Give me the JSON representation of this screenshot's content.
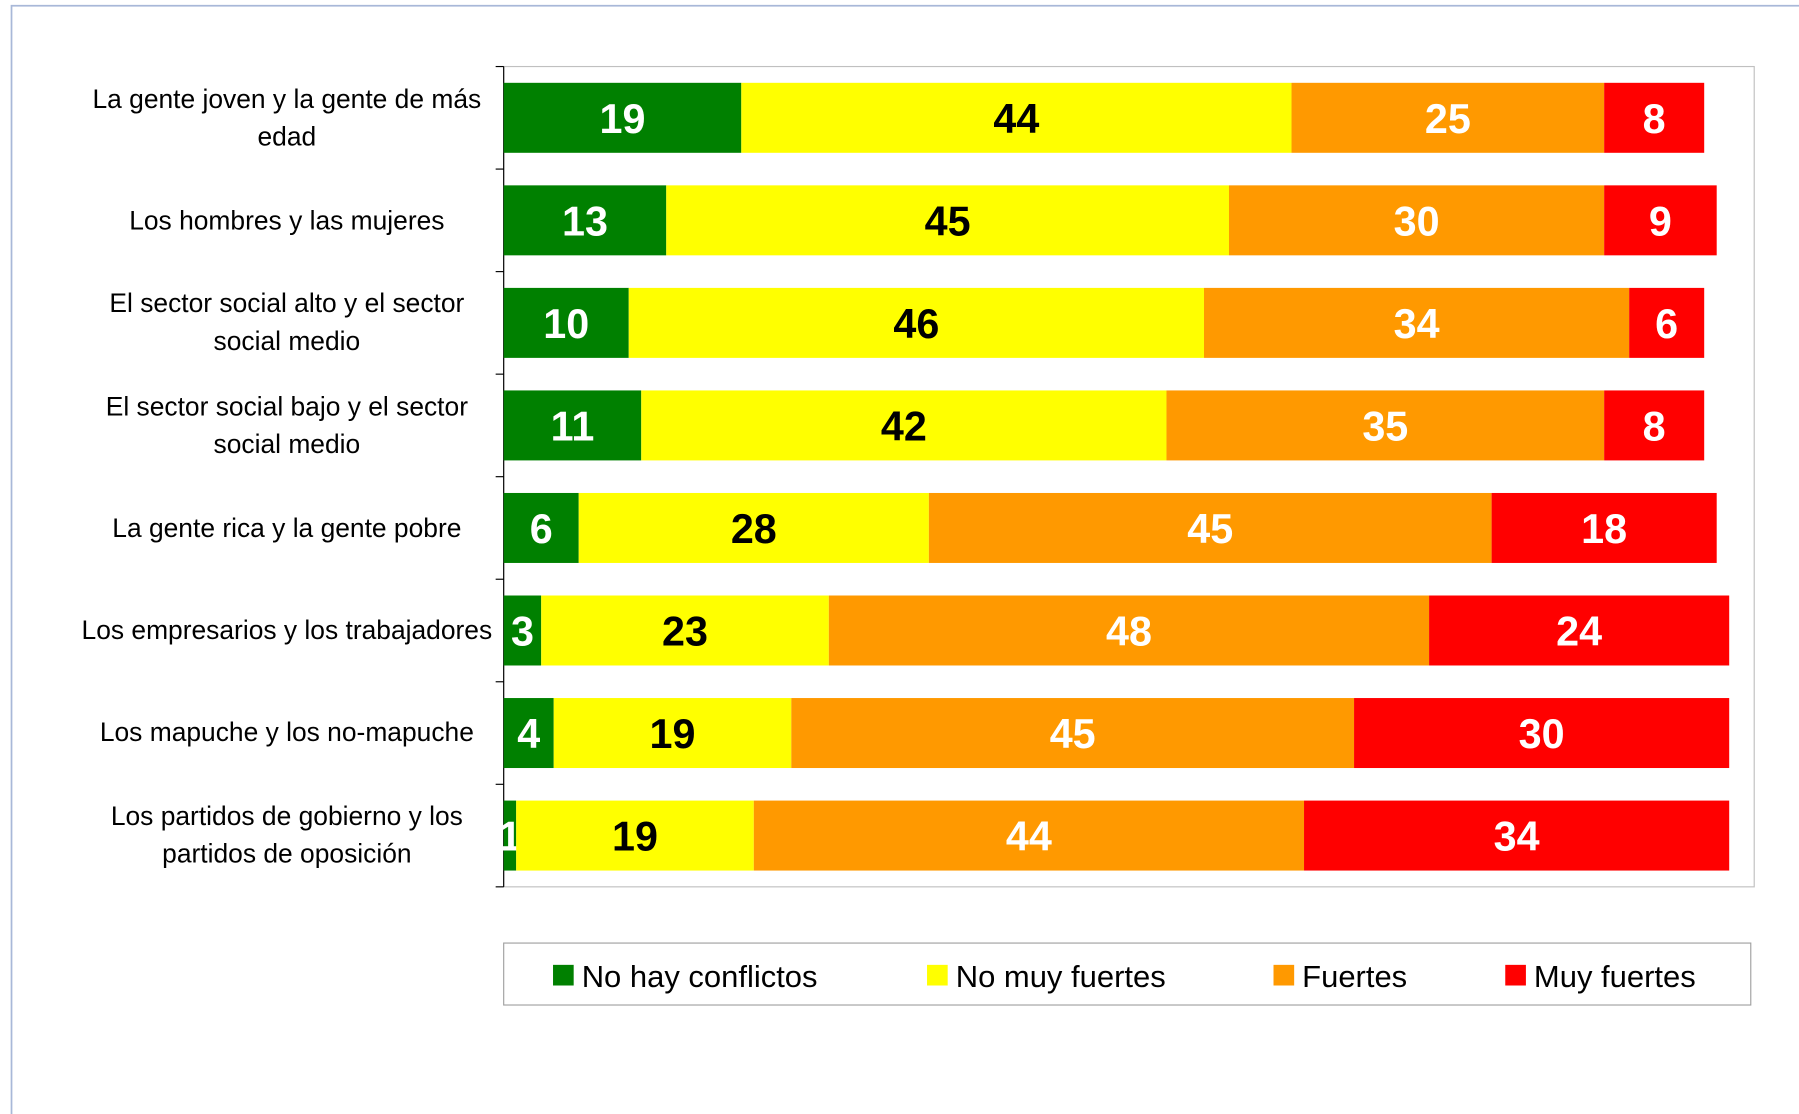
{
  "chart_data": {
    "type": "stacked-bar-horizontal",
    "categories": [
      "La gente joven y la gente de más edad",
      "Los hombres y las mujeres",
      "El sector social alto y el sector social medio",
      "El sector social bajo y el sector social medio",
      "La gente rica y la gente pobre",
      "Los empresarios y los trabajadores",
      "Los mapuche y los no-mapuche",
      "Los partidos de gobierno y los partidos de oposición"
    ],
    "series": [
      {
        "name": "No hay conflictos",
        "color": "#008000",
        "label_color": "#ffffff",
        "values": [
          19,
          13,
          10,
          11,
          6,
          3,
          4,
          1
        ]
      },
      {
        "name": "No muy fuertes",
        "color": "#ffff00",
        "label_color": "#000000",
        "values": [
          44,
          45,
          46,
          42,
          28,
          23,
          19,
          19
        ]
      },
      {
        "name": "Fuertes",
        "color": "#ff9900",
        "label_color": "#ffffff",
        "values": [
          25,
          30,
          34,
          35,
          45,
          48,
          45,
          44
        ]
      },
      {
        "name": "Muy fuertes",
        "color": "#ff0000",
        "label_color": "#ffffff",
        "values": [
          8,
          9,
          6,
          8,
          18,
          24,
          30,
          34
        ]
      }
    ],
    "xlim": [
      0,
      100
    ],
    "legend": "bottom"
  }
}
